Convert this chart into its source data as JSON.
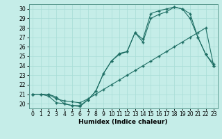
{
  "xlabel": "Humidex (Indice chaleur)",
  "bg_color": "#c5ede8",
  "line_color": "#1e6e64",
  "marker": "+",
  "markersize": 3.5,
  "markeredgewidth": 1.0,
  "linewidth": 0.8,
  "xlim": [
    -0.5,
    23.5
  ],
  "ylim": [
    19.5,
    30.5
  ],
  "xticks": [
    0,
    1,
    2,
    3,
    4,
    5,
    6,
    7,
    8,
    9,
    10,
    11,
    12,
    13,
    14,
    15,
    16,
    17,
    18,
    19,
    20,
    21,
    22,
    23
  ],
  "yticks": [
    20,
    21,
    22,
    23,
    24,
    25,
    26,
    27,
    28,
    29,
    30
  ],
  "line1_x": [
    0,
    1,
    2,
    3,
    4,
    5,
    6,
    7,
    8,
    9,
    10,
    11,
    12,
    13,
    14,
    15,
    16,
    17,
    18,
    19,
    20,
    21,
    22,
    23
  ],
  "line1_y": [
    21.0,
    21.0,
    20.8,
    20.1,
    20.0,
    19.8,
    19.7,
    20.4,
    21.3,
    23.2,
    24.5,
    25.2,
    25.5,
    27.5,
    26.5,
    29.0,
    29.4,
    29.7,
    30.2,
    30.0,
    29.0,
    27.0,
    25.2,
    24.0
  ],
  "line2_x": [
    0,
    1,
    2,
    3,
    4,
    5,
    6,
    7,
    8,
    9,
    10,
    11,
    12,
    13,
    14,
    15,
    16,
    17,
    18,
    19,
    20,
    21,
    22,
    23
  ],
  "line2_y": [
    21.0,
    21.0,
    21.0,
    20.5,
    20.3,
    20.2,
    20.1,
    20.5,
    21.0,
    21.5,
    22.0,
    22.5,
    23.0,
    23.5,
    24.0,
    24.5,
    25.0,
    25.5,
    26.0,
    26.5,
    27.0,
    27.5,
    28.0,
    24.0
  ],
  "line3_x": [
    0,
    2,
    3,
    4,
    5,
    6,
    7,
    8,
    9,
    10,
    11,
    12,
    13,
    14,
    15,
    16,
    17,
    18,
    19,
    20,
    21,
    22,
    23
  ],
  "line3_y": [
    21.0,
    21.0,
    20.7,
    20.0,
    19.8,
    19.8,
    20.4,
    21.3,
    23.2,
    24.5,
    25.3,
    25.5,
    27.5,
    26.8,
    29.5,
    29.8,
    30.0,
    30.2,
    30.0,
    29.5,
    27.0,
    25.2,
    24.2
  ],
  "grid_color": "#a8ddd6",
  "spine_color": "#5a9a90",
  "tick_fontsize": 5.5,
  "xlabel_fontsize": 6.5
}
